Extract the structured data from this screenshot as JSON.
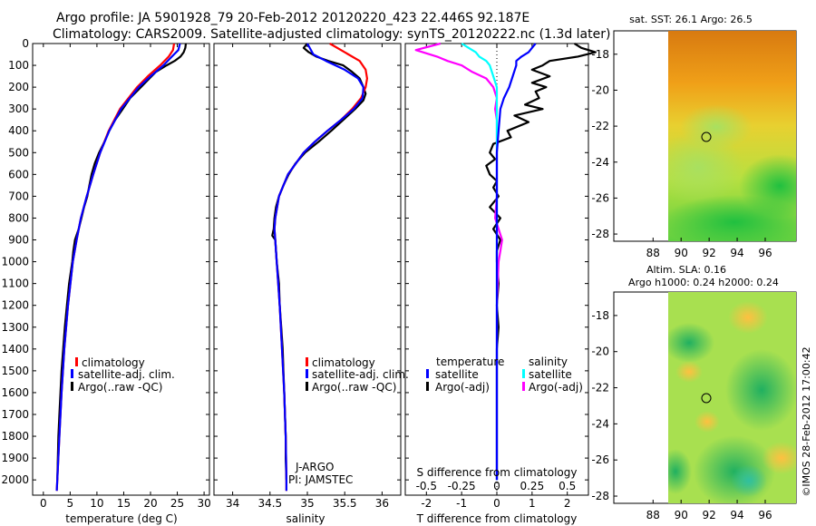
{
  "header": {
    "line1": "Argo profile: JA 5901928_79 20-Feb-2012 20120220_423 22.446S 92.187E",
    "line2": "Climatology: CARS2009. Satellite-adjusted climatology: synTS_20120222.nc (1.3d later)"
  },
  "right_panels": {
    "sst_title": "sat. SST: 26.1  Argo: 26.5",
    "sla_title1": "Altim. SLA: 0.16",
    "sla_title2": "Argo h1000: 0.24 h2000: 0.24",
    "lat_ticks": [
      "-18",
      "-20",
      "-22",
      "-24",
      "-26",
      "-28"
    ],
    "lon_ticks": [
      "88",
      "90",
      "92",
      "94",
      "96"
    ],
    "float_marker": {
      "lon": 92.187,
      "lat": -22.446
    }
  },
  "stamp": "©IMOS 28-Feb-2012 17:00:42",
  "annotations": {
    "program": "J-ARGO",
    "pi": "PI: JAMSTEC"
  },
  "colors": {
    "climatology": "#ff0000",
    "satellite": "#0000ff",
    "argo": "#000000",
    "salinity_satellite": "#00ffff",
    "salinity_argo": "#ff00ff"
  },
  "chart_data": [
    {
      "type": "line",
      "name": "temperature-profile",
      "xlabel": "temperature (deg C)",
      "ylabel": "",
      "xlim": [
        -2,
        31
      ],
      "ylim": [
        2070,
        0
      ],
      "x_ticks": [
        0,
        5,
        10,
        15,
        20,
        25,
        30
      ],
      "y_ticks": [
        0,
        100,
        200,
        300,
        400,
        500,
        600,
        700,
        800,
        900,
        1000,
        1100,
        1200,
        1300,
        1400,
        1500,
        1600,
        1700,
        1800,
        1900,
        2000
      ],
      "legend": [
        "climatology",
        "satellite-adj. clim.",
        "Argo(..raw -QC)"
      ],
      "series": [
        {
          "name": "climatology",
          "depth": [
            0,
            30,
            60,
            100,
            150,
            200,
            300,
            400,
            500,
            600,
            700,
            800,
            900,
            1000,
            1200,
            1400,
            1600,
            1800,
            2000,
            2050
          ],
          "values": [
            24.4,
            24.2,
            23.4,
            21.8,
            19.5,
            17.5,
            14.3,
            12.2,
            10.6,
            9.3,
            8.1,
            7.0,
            6.2,
            5.5,
            4.6,
            3.9,
            3.4,
            3.0,
            2.6,
            2.5
          ]
        },
        {
          "name": "satellite-adj. clim.",
          "depth": [
            0,
            30,
            60,
            100,
            150,
            200,
            300,
            400,
            500,
            600,
            700,
            800,
            900,
            1000,
            1200,
            1400,
            1600,
            1800,
            2000,
            2050
          ],
          "values": [
            25.5,
            25.2,
            24.0,
            22.4,
            20.0,
            17.8,
            14.5,
            12.3,
            10.6,
            9.3,
            8.1,
            7.0,
            6.2,
            5.5,
            4.6,
            3.9,
            3.4,
            3.0,
            2.6,
            2.5
          ]
        },
        {
          "name": "Argo(..raw -QC)",
          "depth": [
            0,
            20,
            40,
            60,
            80,
            100,
            130,
            160,
            200,
            250,
            300,
            350,
            400,
            450,
            500,
            550,
            600,
            650,
            700,
            750,
            800,
            850,
            900,
            950,
            1000,
            1100,
            1200,
            1300,
            1400,
            1500,
            1600,
            1700,
            1800,
            1900,
            2000
          ],
          "values": [
            26.6,
            26.5,
            26.2,
            25.6,
            24.5,
            23.0,
            21.0,
            19.8,
            18.2,
            16.2,
            14.8,
            13.4,
            12.3,
            11.4,
            10.4,
            9.6,
            9.0,
            8.6,
            8.2,
            7.6,
            7.1,
            6.6,
            5.9,
            5.6,
            5.4,
            4.8,
            4.4,
            4.0,
            3.7,
            3.4,
            3.2,
            3.0,
            2.8,
            2.7,
            2.6
          ]
        }
      ]
    },
    {
      "type": "line",
      "name": "salinity-profile",
      "xlabel": "salinity",
      "ylabel": "",
      "xlim": [
        33.75,
        36.25
      ],
      "ylim": [
        2070,
        0
      ],
      "x_ticks": [
        34,
        34.5,
        35,
        35.5,
        36
      ],
      "legend": [
        "climatology",
        "satellite-adj. clim.",
        "Argo(..raw -QC)"
      ],
      "series": [
        {
          "name": "climatology",
          "depth": [
            0,
            50,
            80,
            120,
            160,
            200,
            250,
            300,
            350,
            400,
            450,
            500,
            600,
            700,
            800,
            850,
            900,
            1000,
            1200,
            1400,
            1600,
            1800,
            2000,
            2050
          ],
          "values": [
            35.3,
            35.55,
            35.7,
            35.78,
            35.8,
            35.78,
            35.72,
            35.6,
            35.45,
            35.27,
            35.1,
            34.95,
            34.74,
            34.62,
            34.57,
            34.56,
            34.57,
            34.59,
            34.63,
            34.66,
            34.69,
            34.71,
            34.72,
            34.72
          ]
        },
        {
          "name": "satellite-adj. clim.",
          "depth": [
            0,
            50,
            80,
            120,
            160,
            200,
            250,
            300,
            350,
            400,
            450,
            500,
            600,
            700,
            800,
            850,
            900,
            1000,
            1200,
            1400,
            1600,
            1800,
            2000,
            2050
          ],
          "values": [
            35.0,
            35.08,
            35.25,
            35.5,
            35.68,
            35.75,
            35.74,
            35.62,
            35.45,
            35.27,
            35.1,
            34.95,
            34.74,
            34.62,
            34.57,
            34.56,
            34.57,
            34.59,
            34.63,
            34.66,
            34.69,
            34.71,
            34.72,
            34.72
          ]
        },
        {
          "name": "Argo(..raw -QC)",
          "depth": [
            0,
            20,
            40,
            60,
            80,
            100,
            130,
            160,
            200,
            230,
            260,
            300,
            350,
            400,
            450,
            500,
            550,
            600,
            650,
            700,
            750,
            800,
            850,
            880,
            900,
            950,
            1000,
            1100,
            1200,
            1300,
            1400,
            1500,
            1600,
            1700,
            1800,
            1900,
            2000
          ],
          "values": [
            35.0,
            34.95,
            35.02,
            35.12,
            35.28,
            35.48,
            35.6,
            35.7,
            35.75,
            35.78,
            35.75,
            35.64,
            35.48,
            35.32,
            35.15,
            34.97,
            34.84,
            34.75,
            34.68,
            34.62,
            34.58,
            34.56,
            34.55,
            34.53,
            34.57,
            34.58,
            34.59,
            34.62,
            34.63,
            34.65,
            34.67,
            34.68,
            34.69,
            34.7,
            34.71,
            34.71,
            34.72
          ]
        }
      ]
    },
    {
      "type": "line",
      "name": "difference-profile",
      "xlabel": "T difference from climatology",
      "x2label": "S difference from climatology",
      "ylabel": "",
      "xlim": [
        -2.6,
        2.6
      ],
      "ylim": [
        2070,
        0
      ],
      "x_ticks": [
        -2,
        -1,
        0,
        1,
        2
      ],
      "x2_ticks": [
        "-0.5",
        "-0.25",
        "0",
        "0.25",
        "0.5"
      ],
      "x2_positions": [
        -2,
        -1,
        0,
        1,
        2
      ],
      "legend_temperature": "temperature",
      "legend_salinity": "salinity",
      "legend": [
        "satellite",
        "Argo(-adj)",
        "satellite",
        "Argo(-adj)"
      ],
      "series": [
        {
          "name": "satellite",
          "group": "temperature",
          "depth": [
            0,
            20,
            40,
            60,
            80,
            100,
            150,
            200,
            250,
            300,
            400,
            500,
            600,
            700,
            800,
            900,
            1000,
            1200,
            1500,
            2000
          ],
          "values": [
            1.1,
            1.0,
            0.9,
            0.7,
            0.55,
            0.55,
            0.45,
            0.35,
            0.2,
            0.1,
            0.05,
            0,
            0,
            0,
            0,
            0,
            0,
            0,
            0,
            0
          ]
        },
        {
          "name": "Argo(-adj)",
          "group": "temperature",
          "depth": [
            0,
            20,
            40,
            60,
            80,
            100,
            120,
            150,
            180,
            200,
            220,
            250,
            280,
            300,
            330,
            360,
            400,
            430,
            460,
            500,
            530,
            560,
            600,
            630,
            660,
            700,
            750,
            800,
            850,
            900,
            950,
            1000,
            1100,
            1200,
            1300,
            1400,
            1500,
            1600,
            1800,
            2000
          ],
          "values": [
            2.2,
            2.4,
            2.8,
            2.3,
            1.5,
            1.3,
            1.0,
            1.5,
            1.0,
            1.4,
            1.1,
            1.2,
            0.8,
            1.3,
            0.5,
            0.9,
            0.3,
            0.4,
            -0.1,
            -0.2,
            -0.05,
            -0.3,
            -0.2,
            0.0,
            -0.1,
            0.05,
            -0.2,
            0.1,
            -0.1,
            0.1,
            0.0,
            0.0,
            0.05,
            0.0,
            0.05,
            0.0,
            0.0,
            0.0,
            0.0,
            0.0
          ]
        },
        {
          "name": "satellite",
          "group": "salinity",
          "depth": [
            0,
            20,
            40,
            60,
            80,
            100,
            150,
            200,
            300,
            400,
            500,
            600,
            700,
            800,
            1000,
            1200,
            1500,
            2000
          ],
          "values": [
            -1.0,
            -0.8,
            -0.6,
            -0.5,
            -0.3,
            -0.2,
            -0.1,
            0,
            0,
            0,
            0,
            0,
            0,
            0,
            0,
            0,
            0,
            0
          ]
        },
        {
          "name": "Argo(-adj)",
          "group": "salinity",
          "depth": [
            0,
            30,
            60,
            80,
            100,
            130,
            160,
            200,
            250,
            300,
            350,
            400,
            450,
            500,
            600,
            700,
            800,
            850,
            900,
            950,
            1000,
            1200,
            1500,
            2000
          ],
          "values": [
            -1.6,
            -2.3,
            -1.7,
            -1.4,
            -1.0,
            -0.7,
            -0.3,
            -0.1,
            0.0,
            -0.05,
            0.0,
            0.0,
            0.0,
            0.0,
            0.0,
            0.0,
            -0.05,
            0.05,
            0.15,
            0.1,
            0.05,
            0.0,
            0.0,
            0.0
          ]
        }
      ]
    }
  ]
}
